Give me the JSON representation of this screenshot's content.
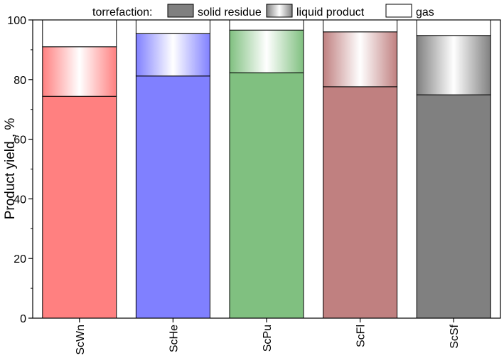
{
  "chart_data": {
    "type": "bar",
    "stacked": true,
    "title": "",
    "xlabel": "",
    "ylabel": "Product yield , %",
    "ylim": [
      0,
      100
    ],
    "yticks": [
      0,
      20,
      40,
      60,
      80,
      100
    ],
    "grid": false,
    "legend": {
      "placement": "top",
      "title": "torrefaction:",
      "entries": [
        {
          "key": "solid",
          "label": "solid residue",
          "swatch": "solid-grey"
        },
        {
          "key": "liquid",
          "label": "liquid product",
          "swatch": "gradient-grey"
        },
        {
          "key": "gas",
          "label": "gas",
          "swatch": "white"
        }
      ]
    },
    "categories": [
      "ScWn",
      "ScHe",
      "ScPu",
      "ScFl",
      "ScSf"
    ],
    "bar_colors": [
      "#ff8080",
      "#8080ff",
      "#80c080",
      "#c08080",
      "#808080"
    ],
    "series": [
      {
        "name": "solid residue",
        "values": [
          74.4,
          81.2,
          82.3,
          77.6,
          74.9
        ]
      },
      {
        "name": "liquid product",
        "values": [
          16.6,
          14.2,
          14.3,
          18.4,
          19.9
        ]
      },
      {
        "name": "gas",
        "values": [
          9.0,
          4.6,
          3.4,
          4.0,
          5.2
        ]
      }
    ]
  }
}
